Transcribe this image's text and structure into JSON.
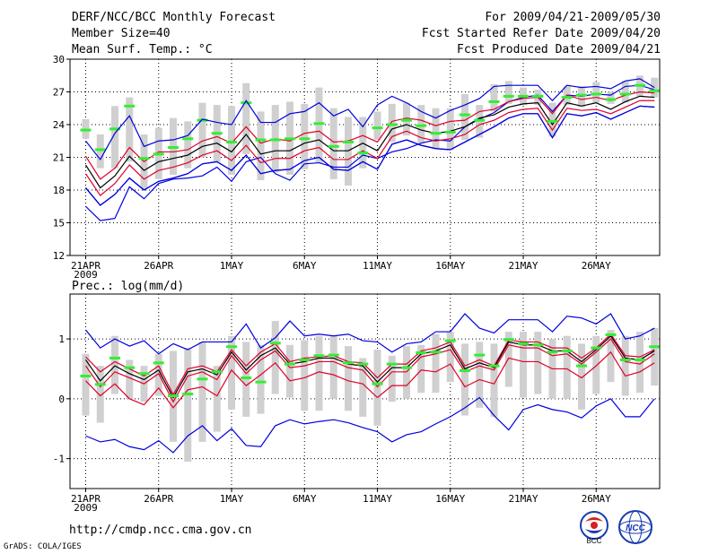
{
  "header": {
    "title": "DERF/NCC/BCC Monthly Forecast",
    "member_size": "Member Size=40",
    "variable": "Mean Surf. Temp.: °C",
    "period": "For 2009/04/21-2009/05/30",
    "start_date": "Fcst Started Refer Date 2009/04/20",
    "produced_date": "Fcst Produced Date 2009/04/21"
  },
  "footer": {
    "url": "http://cmdp.ncc.cma.gov.cn",
    "credit": "GrADS: COLA/IGES",
    "logo1_text": "BCC",
    "logo2_text": "NCC"
  },
  "colors": {
    "mean": "#000000",
    "spread": "#e0002a",
    "extreme": "#0000dd",
    "box": "#d0d0d0",
    "obs": "#33ee33"
  },
  "chart_data": [
    {
      "type": "line",
      "title": "Mean Surf. Temp.: °C",
      "x_ticks": [
        "21APR",
        "26APR",
        "1MAY",
        "6MAY",
        "11MAY",
        "16MAY",
        "21MAY",
        "26MAY"
      ],
      "x_year": "2009",
      "days": 40,
      "ylim": [
        12,
        30
      ],
      "y_ticks": [
        12,
        15,
        18,
        21,
        24,
        27,
        30
      ],
      "grid": true,
      "series": [
        {
          "name": "max",
          "values": [
            16.5,
            15.2,
            15.4,
            18.3,
            17.2,
            18.6,
            19.0,
            19.1,
            19.3,
            20.1,
            18.8,
            20.6,
            21.0,
            19.5,
            18.9,
            20.4,
            20.5,
            20.1,
            20.1,
            21.2,
            20.9,
            21.5,
            21.8,
            22.3,
            22.6,
            22.5,
            23.8,
            24.5,
            25.1,
            26.1,
            26.5,
            26.7,
            25.2,
            26.7,
            26.6,
            26.8,
            26.7,
            27.5,
            27.6,
            27.2
          ]
        },
        {
          "name": "upper",
          "values": [
            21.1,
            19.0,
            20.0,
            21.9,
            20.6,
            21.5,
            21.5,
            21.7,
            22.5,
            22.9,
            22.3,
            23.8,
            22.3,
            22.7,
            22.5,
            23.2,
            23.4,
            22.4,
            22.5,
            23.0,
            22.4,
            24.3,
            24.6,
            24.4,
            23.9,
            24.3,
            24.4,
            25.2,
            25.4,
            26.1,
            26.4,
            26.5,
            25.0,
            26.7,
            26.3,
            26.5,
            26.2,
            26.7,
            27.0,
            26.9
          ]
        },
        {
          "name": "mean",
          "values": [
            20.3,
            18.2,
            19.3,
            21.1,
            19.8,
            20.6,
            20.9,
            21.2,
            22.0,
            22.3,
            21.5,
            23.1,
            21.3,
            21.6,
            21.6,
            22.3,
            22.6,
            21.6,
            21.6,
            22.3,
            21.6,
            23.6,
            24.0,
            23.5,
            23.2,
            23.4,
            23.8,
            24.6,
            24.9,
            25.6,
            25.9,
            26.0,
            24.0,
            26.0,
            25.7,
            26.0,
            25.4,
            26.1,
            26.6,
            26.5
          ]
        },
        {
          "name": "lower",
          "values": [
            19.5,
            17.5,
            18.6,
            20.3,
            19.0,
            19.8,
            20.1,
            20.5,
            21.2,
            21.6,
            20.7,
            22.1,
            20.5,
            20.9,
            20.9,
            21.6,
            21.9,
            20.8,
            20.8,
            21.6,
            20.9,
            22.9,
            23.4,
            22.8,
            22.5,
            22.7,
            23.1,
            24.0,
            24.4,
            25.1,
            25.4,
            25.5,
            23.5,
            25.5,
            25.3,
            25.4,
            25.0,
            25.6,
            26.2,
            26.2
          ]
        },
        {
          "name": "min",
          "values": [
            18.2,
            16.6,
            17.6,
            19.1,
            18.0,
            18.8,
            19.1,
            19.5,
            20.4,
            20.6,
            19.8,
            21.2,
            19.5,
            19.8,
            19.9,
            20.7,
            21.0,
            19.9,
            19.8,
            20.6,
            19.9,
            22.2,
            22.6,
            22.1,
            21.8,
            21.7,
            22.4,
            23.1,
            23.8,
            24.6,
            25.0,
            25.0,
            22.8,
            25.0,
            24.8,
            25.1,
            24.5,
            25.1,
            25.7,
            25.6
          ]
        },
        {
          "name": "observed",
          "values": [
            23.5,
            21.7,
            23.6,
            25.7,
            20.9,
            21.3,
            21.9,
            22.7,
            24.4,
            23.2,
            22.4,
            26.0,
            22.6,
            22.6,
            22.7,
            22.7,
            24.1,
            22.0,
            22.4,
            21.4,
            23.7,
            24.0,
            24.4,
            23.9,
            23.2,
            23.3,
            24.9,
            24.4,
            26.1,
            26.6,
            26.6,
            26.6,
            24.3,
            26.5,
            26.7,
            26.8,
            26.3,
            26.8,
            27.6,
            27.1
          ]
        },
        {
          "name": "box_high",
          "values": [
            24.5,
            23.1,
            25.7,
            26.5,
            23.1,
            23.7,
            24.6,
            24.3,
            26.0,
            25.8,
            25.7,
            27.8,
            25.2,
            25.8,
            26.1,
            25.9,
            27.4,
            25.5,
            24.7,
            24.7,
            25.2,
            25.9,
            26.0,
            25.8,
            25.5,
            25.5,
            26.8,
            25.8,
            27.7,
            28.0,
            27.4,
            27.2,
            26.0,
            27.5,
            27.5,
            27.9,
            27.0,
            28.0,
            28.5,
            28.3
          ]
        },
        {
          "name": "box_low",
          "values": [
            22.7,
            20.0,
            20.0,
            20.6,
            18.1,
            19.0,
            19.4,
            20.0,
            21.0,
            20.6,
            19.4,
            21.3,
            18.9,
            19.6,
            19.4,
            19.9,
            20.5,
            19.0,
            18.4,
            20.0,
            22.6,
            22.4,
            23.0,
            22.3,
            21.8,
            21.7,
            22.6,
            22.8,
            25.2,
            25.9,
            25.8,
            25.8,
            22.9,
            25.8,
            25.6,
            26.0,
            25.9,
            26.0,
            26.6,
            26.5
          ]
        }
      ]
    },
    {
      "type": "line",
      "title": "Prec.: log(mm/d)",
      "x_ticks": [
        "21APR",
        "26APR",
        "1MAY",
        "6MAY",
        "11MAY",
        "16MAY",
        "21MAY",
        "26MAY"
      ],
      "x_year": "2009",
      "days": 40,
      "ylim": [
        -1.5,
        1.75
      ],
      "y_ticks": [
        -1,
        0,
        1
      ],
      "grid": true,
      "series": [
        {
          "name": "max",
          "values": [
            1.15,
            0.85,
            1.0,
            0.88,
            0.97,
            0.75,
            0.92,
            0.82,
            0.95,
            0.95,
            0.95,
            1.25,
            0.85,
            1.02,
            1.3,
            1.05,
            1.08,
            1.05,
            1.08,
            0.97,
            0.95,
            0.78,
            0.92,
            0.95,
            1.12,
            1.12,
            1.42,
            1.18,
            1.1,
            1.32,
            1.32,
            1.32,
            1.12,
            1.38,
            1.35,
            1.25,
            1.42,
            1.0,
            1.05,
            1.18
          ]
        },
        {
          "name": "upper",
          "values": [
            0.7,
            0.45,
            0.62,
            0.5,
            0.38,
            0.55,
            0.07,
            0.5,
            0.55,
            0.45,
            0.82,
            0.55,
            0.78,
            0.92,
            0.62,
            0.68,
            0.7,
            0.72,
            0.62,
            0.6,
            0.35,
            0.58,
            0.58,
            0.8,
            0.85,
            0.95,
            0.55,
            0.65,
            0.55,
            0.98,
            0.95,
            0.95,
            0.85,
            0.85,
            0.68,
            0.85,
            1.08,
            0.72,
            0.7,
            0.82
          ]
        },
        {
          "name": "mean",
          "values": [
            0.65,
            0.3,
            0.55,
            0.42,
            0.32,
            0.48,
            0.02,
            0.45,
            0.5,
            0.4,
            0.78,
            0.48,
            0.72,
            0.85,
            0.58,
            0.62,
            0.68,
            0.68,
            0.58,
            0.55,
            0.28,
            0.52,
            0.52,
            0.75,
            0.8,
            0.9,
            0.5,
            0.6,
            0.52,
            0.95,
            0.9,
            0.9,
            0.8,
            0.8,
            0.62,
            0.82,
            1.05,
            0.68,
            0.65,
            0.8
          ]
        },
        {
          "name": "lower",
          "values": [
            0.55,
            0.2,
            0.45,
            0.35,
            0.25,
            0.42,
            -0.05,
            0.38,
            0.45,
            0.32,
            0.72,
            0.42,
            0.65,
            0.8,
            0.52,
            0.55,
            0.62,
            0.62,
            0.52,
            0.48,
            0.2,
            0.45,
            0.45,
            0.7,
            0.75,
            0.82,
            0.45,
            0.55,
            0.48,
            0.9,
            0.85,
            0.85,
            0.72,
            0.75,
            0.58,
            0.78,
            1.0,
            0.62,
            0.58,
            0.75
          ]
        },
        {
          "name": "min",
          "values": [
            0.3,
            0.05,
            0.25,
            0.0,
            -0.1,
            0.18,
            -0.15,
            0.15,
            0.2,
            0.05,
            0.48,
            0.22,
            0.4,
            0.6,
            0.3,
            0.35,
            0.45,
            0.4,
            0.3,
            0.25,
            0.02,
            0.22,
            0.22,
            0.48,
            0.45,
            0.58,
            0.2,
            0.32,
            0.25,
            0.68,
            0.62,
            0.62,
            0.5,
            0.5,
            0.35,
            0.55,
            0.78,
            0.38,
            0.45,
            0.6
          ]
        },
        {
          "name": "extreme_low",
          "values": [
            -0.62,
            -0.72,
            -0.68,
            -0.8,
            -0.85,
            -0.7,
            -0.9,
            -0.62,
            -0.45,
            -0.7,
            -0.5,
            -0.78,
            -0.8,
            -0.45,
            -0.35,
            -0.42,
            -0.38,
            -0.35,
            -0.4,
            -0.48,
            -0.55,
            -0.72,
            -0.6,
            -0.55,
            -0.42,
            -0.3,
            -0.15,
            0.02,
            -0.28,
            -0.52,
            -0.18,
            -0.1,
            -0.18,
            -0.22,
            -0.32,
            -0.12,
            0.0,
            -0.3,
            -0.3,
            0.0
          ]
        },
        {
          "name": "observed",
          "values": [
            0.38,
            0.24,
            0.68,
            0.52,
            0.42,
            0.6,
            0.05,
            0.08,
            0.33,
            0.45,
            0.87,
            0.35,
            0.28,
            0.93,
            0.58,
            0.65,
            0.72,
            0.73,
            0.6,
            0.58,
            0.25,
            0.58,
            0.52,
            0.77,
            0.78,
            0.97,
            0.47,
            0.73,
            0.55,
            0.99,
            0.92,
            0.9,
            0.78,
            0.8,
            0.55,
            0.85,
            1.07,
            0.65,
            0.65,
            0.87
          ]
        },
        {
          "name": "box_high",
          "values": [
            0.75,
            0.55,
            1.05,
            0.65,
            0.55,
            0.75,
            0.8,
            0.85,
            0.95,
            0.55,
            1.05,
            0.95,
            0.9,
            1.3,
            0.9,
            0.98,
            1.05,
            1.05,
            0.88,
            0.68,
            0.82,
            0.72,
            0.88,
            0.9,
            1.08,
            1.12,
            0.92,
            0.95,
            0.92,
            1.12,
            1.12,
            1.12,
            1.0,
            1.05,
            0.92,
            1.05,
            1.15,
            1.05,
            1.12,
            1.18
          ]
        },
        {
          "name": "box_low",
          "values": [
            -0.28,
            -0.4,
            0.08,
            0.0,
            -0.05,
            0.05,
            -0.72,
            -1.05,
            -0.72,
            -0.55,
            -0.18,
            -0.3,
            -0.25,
            0.08,
            0.02,
            -0.2,
            -0.2,
            0.0,
            -0.2,
            -0.3,
            -0.45,
            -0.05,
            0.0,
            0.1,
            0.1,
            0.28,
            -0.28,
            -0.15,
            -0.3,
            0.2,
            0.02,
            0.08,
            0.0,
            0.0,
            -0.18,
            0.08,
            0.28,
            0.05,
            0.1,
            0.22
          ]
        }
      ]
    }
  ]
}
